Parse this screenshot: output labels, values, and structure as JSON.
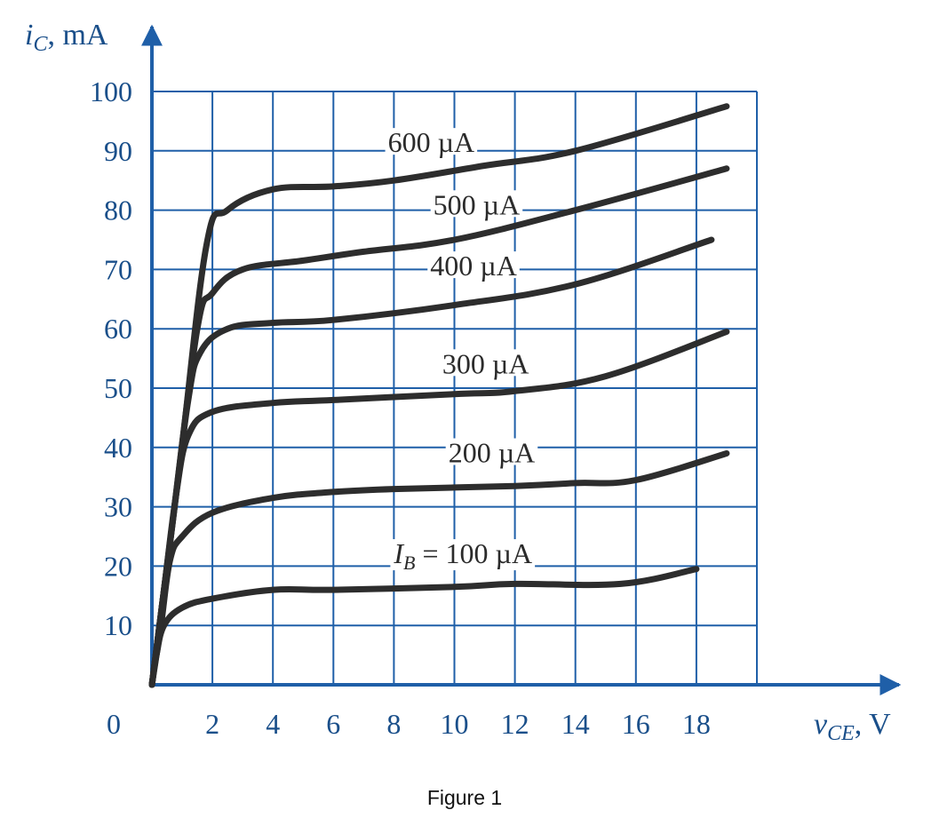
{
  "chart_data": {
    "type": "line",
    "xlabel": "v_CE, V",
    "ylabel": "i_C, mA",
    "xlabel_parts": {
      "symbol": "v",
      "sub": "CE",
      "unit": ", V"
    },
    "ylabel_parts": {
      "symbol": "i",
      "sub": "C",
      "unit": ", mA"
    },
    "xlim": [
      0,
      20
    ],
    "ylim": [
      0,
      100
    ],
    "origin_label": "0",
    "xticks": [
      "2",
      "4",
      "6",
      "8",
      "10",
      "12",
      "14",
      "16",
      "18"
    ],
    "xtick_values": [
      2,
      4,
      6,
      8,
      10,
      12,
      14,
      16,
      18
    ],
    "yticks": [
      "10",
      "20",
      "30",
      "40",
      "50",
      "60",
      "70",
      "80",
      "90",
      "100"
    ],
    "ytick_values": [
      10,
      20,
      30,
      40,
      50,
      60,
      70,
      80,
      90,
      100
    ],
    "grid": true,
    "series": [
      {
        "name": "I_B = 100 µA",
        "label": "I",
        "label_sub": "B",
        "label_rest": " = 100 µA",
        "label_at": [
          8.0,
          20.5
        ],
        "points": [
          [
            0,
            0
          ],
          [
            0.15,
            5
          ],
          [
            0.4,
            10
          ],
          [
            1,
            13
          ],
          [
            2,
            14.5
          ],
          [
            4,
            16
          ],
          [
            6,
            16
          ],
          [
            10,
            16.5
          ],
          [
            12,
            17
          ],
          [
            15.5,
            17
          ],
          [
            18,
            19.5
          ]
        ]
      },
      {
        "name": "200 µA",
        "label": "200 µA",
        "label_at": [
          9.8,
          37.5
        ],
        "points": [
          [
            0,
            0
          ],
          [
            0.3,
            10
          ],
          [
            0.6,
            21
          ],
          [
            1,
            25
          ],
          [
            2,
            29
          ],
          [
            4,
            31.5
          ],
          [
            6,
            32.5
          ],
          [
            8,
            33
          ],
          [
            12,
            33.5
          ],
          [
            14,
            34
          ],
          [
            16,
            34.5
          ],
          [
            19,
            39
          ]
        ]
      },
      {
        "name": "300 µA",
        "label": "300 µA",
        "label_at": [
          9.6,
          52.5
        ],
        "points": [
          [
            0,
            0
          ],
          [
            0.4,
            16
          ],
          [
            0.8,
            32
          ],
          [
            1.2,
            42
          ],
          [
            2,
            46
          ],
          [
            4,
            47.5
          ],
          [
            6,
            48
          ],
          [
            10,
            49
          ],
          [
            12,
            49.5
          ],
          [
            15,
            52
          ],
          [
            19,
            59.5
          ]
        ]
      },
      {
        "name": "400 µA",
        "label": "400 µA",
        "label_at": [
          9.2,
          69.0
        ],
        "points": [
          [
            0,
            0
          ],
          [
            0.6,
            24
          ],
          [
            1.2,
            48
          ],
          [
            1.6,
            56
          ],
          [
            2.5,
            60
          ],
          [
            4,
            61
          ],
          [
            6,
            61.5
          ],
          [
            10,
            64
          ],
          [
            14,
            67.5
          ],
          [
            18.5,
            75
          ]
        ]
      },
      {
        "name": "500 µA",
        "label": "500 µA",
        "label_at": [
          9.3,
          79.3
        ],
        "points": [
          [
            0,
            0
          ],
          [
            0.7,
            28
          ],
          [
            1.5,
            60
          ],
          [
            2,
            66
          ],
          [
            3,
            70
          ],
          [
            5,
            71.5
          ],
          [
            7,
            73
          ],
          [
            10,
            75
          ],
          [
            14,
            80
          ],
          [
            19,
            87
          ]
        ]
      },
      {
        "name": "600 µA",
        "label": "600 µA",
        "label_at": [
          7.8,
          89.8
        ],
        "points": [
          [
            0,
            0
          ],
          [
            0.9,
            36
          ],
          [
            1.8,
            74
          ],
          [
            2.5,
            80
          ],
          [
            4,
            83.5
          ],
          [
            6,
            84
          ],
          [
            8,
            85
          ],
          [
            11,
            87.5
          ],
          [
            14,
            90
          ],
          [
            19,
            97.5
          ]
        ]
      }
    ]
  },
  "caption": "Figure 1"
}
